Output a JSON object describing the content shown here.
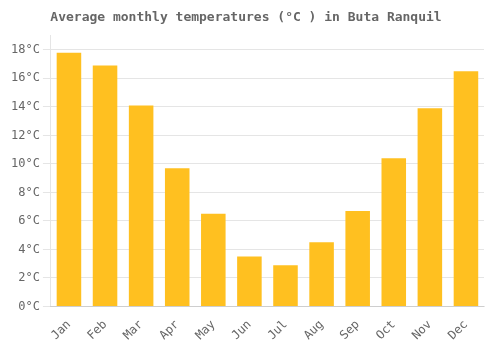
{
  "chart_data": {
    "type": "bar",
    "title": "Average monthly temperatures (°C ) in Buta Ranquil",
    "categories": [
      "Jan",
      "Feb",
      "Mar",
      "Apr",
      "May",
      "Jun",
      "Jul",
      "Aug",
      "Sep",
      "Oct",
      "Nov",
      "Dec"
    ],
    "values": [
      17.8,
      16.9,
      14.1,
      9.7,
      6.5,
      3.5,
      2.9,
      4.5,
      6.7,
      10.4,
      13.9,
      16.5
    ],
    "color": "#FFC020",
    "ylim": [
      0,
      19
    ],
    "yticks": [
      {
        "value": 0,
        "label": "0°C"
      },
      {
        "value": 2,
        "label": "2°C"
      },
      {
        "value": 4,
        "label": "4°C"
      },
      {
        "value": 6,
        "label": "6°C"
      },
      {
        "value": 8,
        "label": "8°C"
      },
      {
        "value": 10,
        "label": "10°C"
      },
      {
        "value": 12,
        "label": "12°C"
      },
      {
        "value": 14,
        "label": "14°C"
      },
      {
        "value": 16,
        "label": "16°C"
      },
      {
        "value": 18,
        "label": "18°C"
      }
    ],
    "grid": true
  }
}
